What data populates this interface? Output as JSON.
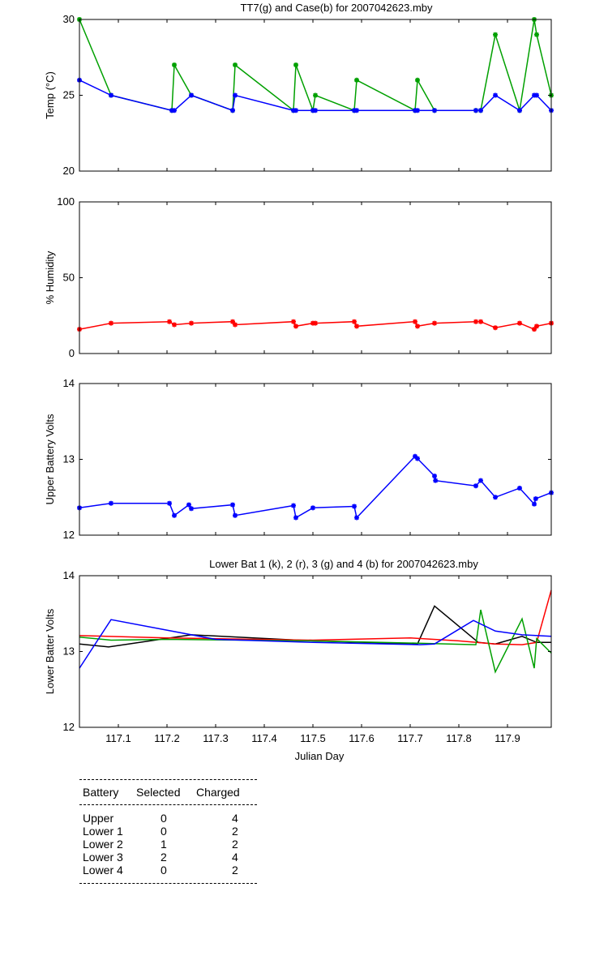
{
  "chart_data": [
    {
      "type": "line",
      "title": "TT7(g) and Case(b) for 2007042623.mby",
      "xlabel": "",
      "ylabel": "Temp  (°C)",
      "xlim": [
        117.02,
        117.99
      ],
      "ylim": [
        20,
        30
      ],
      "yticks": [
        20,
        25,
        30
      ],
      "series": [
        {
          "color": "#00a000",
          "marker": "*",
          "points": [
            [
              117.02,
              30
            ],
            [
              117.085,
              25
            ],
            [
              117.21,
              24
            ],
            [
              117.215,
              27
            ],
            [
              117.25,
              25
            ],
            [
              117.335,
              24
            ],
            [
              117.34,
              27
            ],
            [
              117.46,
              24
            ],
            [
              117.465,
              27
            ],
            [
              117.5,
              24
            ],
            [
              117.505,
              25
            ],
            [
              117.585,
              24
            ],
            [
              117.59,
              26
            ],
            [
              117.71,
              24
            ],
            [
              117.715,
              26
            ],
            [
              117.75,
              24
            ],
            [
              117.835,
              24
            ],
            [
              117.845,
              24
            ],
            [
              117.875,
              29
            ],
            [
              117.925,
              24
            ],
            [
              117.955,
              30
            ],
            [
              117.96,
              29
            ],
            [
              117.99,
              25
            ]
          ]
        },
        {
          "color": "#0000ff",
          "marker": "*",
          "points": [
            [
              117.02,
              26
            ],
            [
              117.085,
              25
            ],
            [
              117.21,
              24
            ],
            [
              117.215,
              24
            ],
            [
              117.25,
              25
            ],
            [
              117.335,
              24
            ],
            [
              117.34,
              25
            ],
            [
              117.46,
              24
            ],
            [
              117.465,
              24
            ],
            [
              117.5,
              24
            ],
            [
              117.505,
              24
            ],
            [
              117.585,
              24
            ],
            [
              117.59,
              24
            ],
            [
              117.71,
              24
            ],
            [
              117.715,
              24
            ],
            [
              117.75,
              24
            ],
            [
              117.835,
              24
            ],
            [
              117.845,
              24
            ],
            [
              117.875,
              25
            ],
            [
              117.925,
              24
            ],
            [
              117.955,
              25
            ],
            [
              117.96,
              25
            ],
            [
              117.99,
              24
            ]
          ]
        }
      ]
    },
    {
      "type": "line",
      "title": "",
      "xlabel": "",
      "ylabel": "% Humidity",
      "xlim": [
        117.02,
        117.99
      ],
      "ylim": [
        0,
        100
      ],
      "yticks": [
        0,
        50,
        100
      ],
      "series": [
        {
          "color": "#ff0000",
          "marker": "*",
          "points": [
            [
              117.02,
              16
            ],
            [
              117.085,
              20
            ],
            [
              117.205,
              21
            ],
            [
              117.215,
              19
            ],
            [
              117.25,
              20
            ],
            [
              117.335,
              21
            ],
            [
              117.34,
              19
            ],
            [
              117.46,
              21
            ],
            [
              117.465,
              18
            ],
            [
              117.5,
              20
            ],
            [
              117.505,
              20
            ],
            [
              117.585,
              21
            ],
            [
              117.59,
              18
            ],
            [
              117.71,
              21
            ],
            [
              117.715,
              18
            ],
            [
              117.75,
              20
            ],
            [
              117.835,
              21
            ],
            [
              117.845,
              21
            ],
            [
              117.875,
              17
            ],
            [
              117.925,
              20
            ],
            [
              117.955,
              16
            ],
            [
              117.96,
              18
            ],
            [
              117.99,
              20
            ]
          ]
        }
      ]
    },
    {
      "type": "line",
      "title": "",
      "xlabel": "",
      "ylabel": "Upper Battery Volts",
      "xlim": [
        117.02,
        117.99
      ],
      "ylim": [
        12,
        14
      ],
      "yticks": [
        12,
        13,
        14
      ],
      "series": [
        {
          "color": "#0000ff",
          "marker": "*",
          "points": [
            [
              117.02,
              12.36
            ],
            [
              117.085,
              12.42
            ],
            [
              117.205,
              12.42
            ],
            [
              117.215,
              12.26
            ],
            [
              117.245,
              12.4
            ],
            [
              117.25,
              12.35
            ],
            [
              117.335,
              12.4
            ],
            [
              117.34,
              12.26
            ],
            [
              117.46,
              12.39
            ],
            [
              117.465,
              12.23
            ],
            [
              117.5,
              12.36
            ],
            [
              117.585,
              12.38
            ],
            [
              117.59,
              12.23
            ],
            [
              117.71,
              13.04
            ],
            [
              117.715,
              13.01
            ],
            [
              117.75,
              12.78
            ],
            [
              117.752,
              12.72
            ],
            [
              117.835,
              12.65
            ],
            [
              117.845,
              12.72
            ],
            [
              117.875,
              12.5
            ],
            [
              117.925,
              12.62
            ],
            [
              117.955,
              12.41
            ],
            [
              117.958,
              12.48
            ],
            [
              117.99,
              12.56
            ]
          ]
        }
      ]
    },
    {
      "type": "line",
      "title": "Lower Bat 1 (k), 2 (r), 3 (g) and 4 (b) for 2007042623.mby",
      "xlabel": "Julian Day",
      "ylabel": "Lower Batter Volts",
      "xlim": [
        117.02,
        117.99
      ],
      "ylim": [
        12,
        14
      ],
      "yticks": [
        12,
        13,
        14
      ],
      "xticks": [
        117.1,
        117.2,
        117.3,
        117.4,
        117.5,
        117.6,
        117.7,
        117.8,
        117.9
      ],
      "series": [
        {
          "color": "#000000",
          "marker": "",
          "points": [
            [
              117.02,
              13.1
            ],
            [
              117.08,
              13.06
            ],
            [
              117.25,
              13.22
            ],
            [
              117.5,
              13.14
            ],
            [
              117.715,
              13.1
            ],
            [
              117.75,
              13.6
            ],
            [
              117.84,
              13.12
            ],
            [
              117.875,
              13.1
            ],
            [
              117.93,
              13.2
            ],
            [
              117.96,
              13.12
            ],
            [
              117.99,
              13.12
            ]
          ]
        },
        {
          "color": "#ff0000",
          "marker": "",
          "points": [
            [
              117.02,
              13.21
            ],
            [
              117.2,
              13.18
            ],
            [
              117.5,
              13.15
            ],
            [
              117.7,
              13.18
            ],
            [
              117.8,
              13.14
            ],
            [
              117.875,
              13.1
            ],
            [
              117.93,
              13.09
            ],
            [
              117.96,
              13.12
            ],
            [
              117.99,
              13.81
            ]
          ]
        },
        {
          "color": "#00a000",
          "marker": "",
          "points": [
            [
              117.02,
              13.19
            ],
            [
              117.085,
              13.15
            ],
            [
              117.2,
              13.16
            ],
            [
              117.5,
              13.14
            ],
            [
              117.715,
              13.11
            ],
            [
              117.835,
              13.09
            ],
            [
              117.845,
              13.55
            ],
            [
              117.875,
              12.73
            ],
            [
              117.93,
              13.43
            ],
            [
              117.955,
              12.78
            ],
            [
              117.96,
              13.17
            ],
            [
              117.99,
              12.98
            ]
          ]
        },
        {
          "color": "#0000ff",
          "marker": "",
          "points": [
            [
              117.02,
              12.78
            ],
            [
              117.085,
              13.42
            ],
            [
              117.3,
              13.16
            ],
            [
              117.5,
              13.12
            ],
            [
              117.72,
              13.09
            ],
            [
              117.75,
              13.1
            ],
            [
              117.83,
              13.41
            ],
            [
              117.875,
              13.27
            ],
            [
              117.93,
              13.22
            ],
            [
              117.99,
              13.2
            ]
          ]
        }
      ]
    }
  ],
  "table": {
    "headers": [
      "Battery",
      "Selected",
      "Charged"
    ],
    "rows": [
      [
        "Upper",
        "0",
        "4"
      ],
      [
        "Lower 1",
        "0",
        "2"
      ],
      [
        "Lower 2",
        "1",
        "2"
      ],
      [
        "Lower 3",
        "2",
        "4"
      ],
      [
        "Lower 4",
        "0",
        "2"
      ]
    ]
  }
}
